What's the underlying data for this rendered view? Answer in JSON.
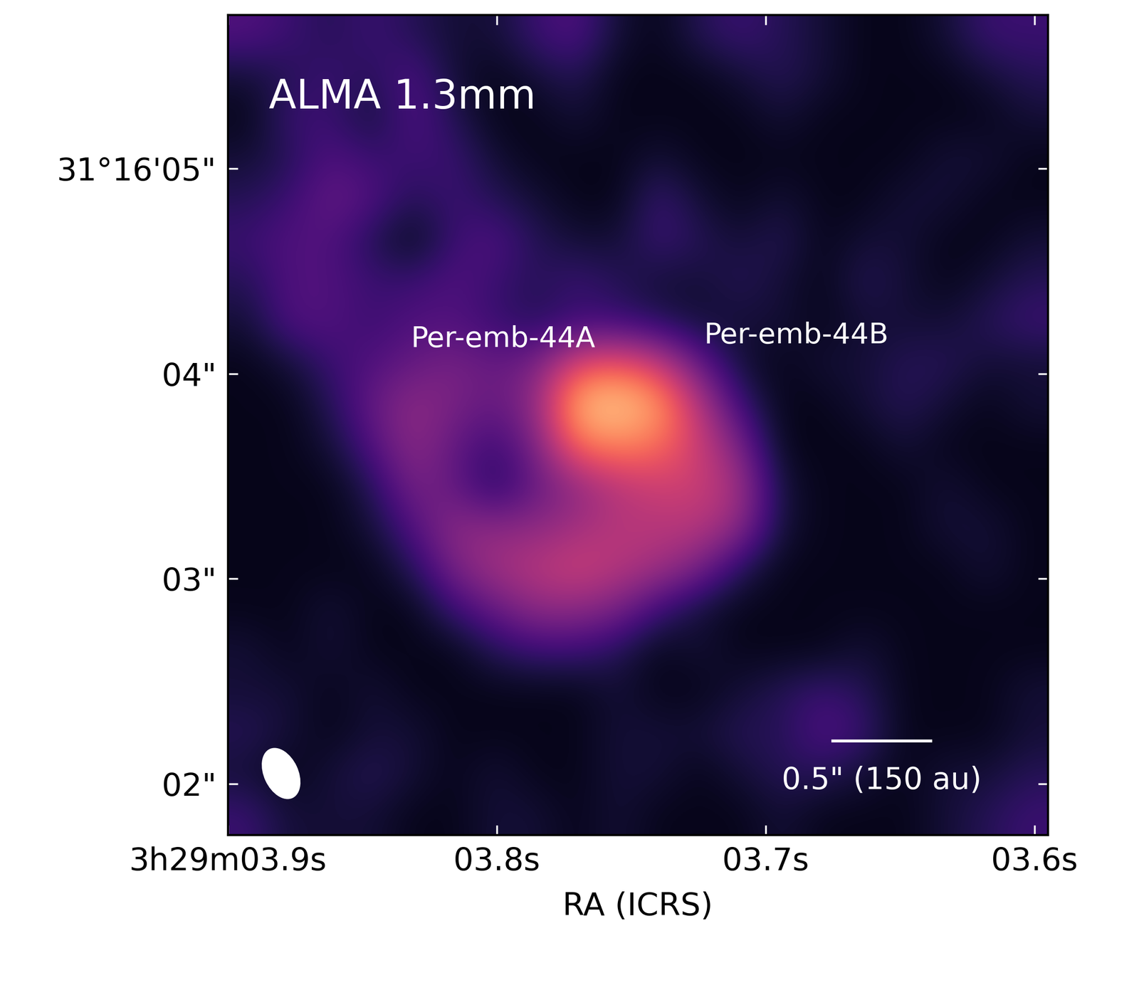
{
  "chart_data": {
    "type": "heatmap",
    "annotations": [
      "ALMA 1.3mm",
      "Per-emb-44A",
      "Per-emb-44B",
      "0.5\" (150 au)"
    ],
    "x_label": "RA (ICRS)",
    "xlim": [
      3.9,
      3.595
    ],
    "ylim": [
      1.75,
      5.75
    ],
    "xticks": [
      {
        "value": 3.9,
        "label": "3h29m03.9s"
      },
      {
        "value": 3.8,
        "label": "03.8s"
      },
      {
        "value": 3.7,
        "label": "03.7s"
      },
      {
        "value": 3.6,
        "label": "03.6s"
      }
    ],
    "yticks": [
      {
        "value": 5,
        "label": "31°16'05\""
      },
      {
        "value": 4,
        "label": "04\""
      },
      {
        "value": 3,
        "label": "03\""
      },
      {
        "value": 2,
        "label": "02\""
      }
    ],
    "color": "magma",
    "color_range": [
      0,
      1
    ],
    "cells": [
      [
        0.25,
        0.2,
        0.15,
        0.2,
        0.15,
        0.1,
        0.1,
        0.2,
        0.25,
        0.1,
        0.05,
        0.15,
        0.2,
        0.15,
        0.1,
        0.05,
        0.05,
        0.1,
        0.2,
        0.2
      ],
      [
        0.1,
        0.15,
        0.2,
        0.15,
        0.25,
        0.1,
        0.05,
        0.1,
        0.15,
        0.05,
        0.05,
        0.05,
        0.1,
        0.15,
        0.1,
        0.05,
        0.05,
        0.05,
        0.1,
        0.15
      ],
      [
        0.05,
        0.2,
        0.2,
        0.1,
        0.25,
        0.15,
        0.05,
        0.05,
        0.1,
        0.05,
        0.05,
        0.05,
        0.05,
        0.1,
        0.05,
        0.05,
        0.05,
        0.05,
        0.05,
        0.1
      ],
      [
        0.1,
        0.15,
        0.25,
        0.2,
        0.2,
        0.2,
        0.1,
        0.05,
        0.05,
        0.05,
        0.1,
        0.05,
        0.05,
        0.05,
        0.05,
        0.05,
        0.05,
        0.1,
        0.1,
        0.05
      ],
      [
        0.15,
        0.2,
        0.3,
        0.25,
        0.15,
        0.2,
        0.15,
        0.1,
        0.05,
        0.05,
        0.2,
        0.1,
        0.05,
        0.1,
        0.05,
        0.05,
        0.1,
        0.1,
        0.05,
        0.05
      ],
      [
        0.2,
        0.25,
        0.25,
        0.15,
        0.05,
        0.2,
        0.25,
        0.15,
        0.1,
        0.1,
        0.2,
        0.15,
        0.1,
        0.15,
        0.05,
        0.1,
        0.1,
        0.05,
        0.05,
        0.1
      ],
      [
        0.15,
        0.25,
        0.25,
        0.2,
        0.2,
        0.25,
        0.2,
        0.15,
        0.2,
        0.15,
        0.1,
        0.1,
        0.15,
        0.1,
        0.05,
        0.15,
        0.1,
        0.05,
        0.1,
        0.15
      ],
      [
        0.1,
        0.25,
        0.25,
        0.2,
        0.25,
        0.25,
        0.2,
        0.15,
        0.2,
        0.2,
        0.15,
        0.1,
        0.1,
        0.1,
        0.05,
        0.1,
        0.1,
        0.1,
        0.15,
        0.2
      ],
      [
        0.05,
        0.1,
        0.2,
        0.25,
        0.3,
        0.35,
        0.3,
        0.35,
        0.6,
        0.65,
        0.55,
        0.3,
        0.1,
        0.05,
        0.1,
        0.1,
        0.15,
        0.15,
        0.1,
        0.1
      ],
      [
        0.05,
        0.05,
        0.15,
        0.3,
        0.4,
        0.35,
        0.3,
        0.4,
        0.85,
        0.9,
        0.8,
        0.5,
        0.2,
        0.05,
        0.05,
        0.1,
        0.15,
        0.1,
        0.05,
        0.1
      ],
      [
        0.05,
        0.05,
        0.1,
        0.25,
        0.4,
        0.3,
        0.2,
        0.35,
        0.7,
        0.75,
        0.7,
        0.55,
        0.35,
        0.05,
        0.05,
        0.05,
        0.1,
        0.05,
        0.05,
        0.05
      ],
      [
        0.05,
        0.05,
        0.05,
        0.15,
        0.35,
        0.3,
        0.15,
        0.3,
        0.4,
        0.5,
        0.55,
        0.55,
        0.45,
        0.1,
        0.05,
        0.05,
        0.05,
        0.1,
        0.05,
        0.05
      ],
      [
        0.05,
        0.05,
        0.05,
        0.1,
        0.25,
        0.4,
        0.4,
        0.4,
        0.45,
        0.5,
        0.5,
        0.5,
        0.4,
        0.1,
        0.05,
        0.05,
        0.05,
        0.1,
        0.1,
        0.05
      ],
      [
        0.05,
        0.05,
        0.05,
        0.05,
        0.15,
        0.35,
        0.45,
        0.5,
        0.55,
        0.5,
        0.45,
        0.35,
        0.15,
        0.05,
        0.05,
        0.05,
        0.05,
        0.05,
        0.1,
        0.05
      ],
      [
        0.05,
        0.05,
        0.1,
        0.05,
        0.05,
        0.2,
        0.3,
        0.4,
        0.4,
        0.35,
        0.2,
        0.1,
        0.05,
        0.05,
        0.05,
        0.05,
        0.05,
        0.05,
        0.05,
        0.05
      ],
      [
        0.1,
        0.05,
        0.1,
        0.05,
        0.05,
        0.05,
        0.15,
        0.2,
        0.2,
        0.15,
        0.05,
        0.1,
        0.05,
        0.05,
        0.05,
        0.1,
        0.05,
        0.05,
        0.05,
        0.05
      ],
      [
        0.1,
        0.1,
        0.05,
        0.1,
        0.05,
        0.05,
        0.05,
        0.05,
        0.05,
        0.1,
        0.05,
        0.05,
        0.1,
        0.15,
        0.2,
        0.15,
        0.05,
        0.05,
        0.05,
        0.1
      ],
      [
        0.15,
        0.1,
        0.05,
        0.1,
        0.1,
        0.05,
        0.05,
        0.05,
        0.05,
        0.1,
        0.1,
        0.1,
        0.15,
        0.15,
        0.25,
        0.2,
        0.05,
        0.05,
        0.05,
        0.1
      ],
      [
        0.1,
        0.05,
        0.1,
        0.15,
        0.1,
        0.05,
        0.1,
        0.05,
        0.05,
        0.1,
        0.1,
        0.05,
        0.1,
        0.15,
        0.15,
        0.1,
        0.05,
        0.1,
        0.1,
        0.15
      ],
      [
        0.2,
        0.1,
        0.1,
        0.1,
        0.05,
        0.05,
        0.1,
        0.1,
        0.05,
        0.1,
        0.05,
        0.05,
        0.05,
        0.1,
        0.05,
        0.05,
        0.05,
        0.1,
        0.15,
        0.2
      ]
    ]
  }
}
